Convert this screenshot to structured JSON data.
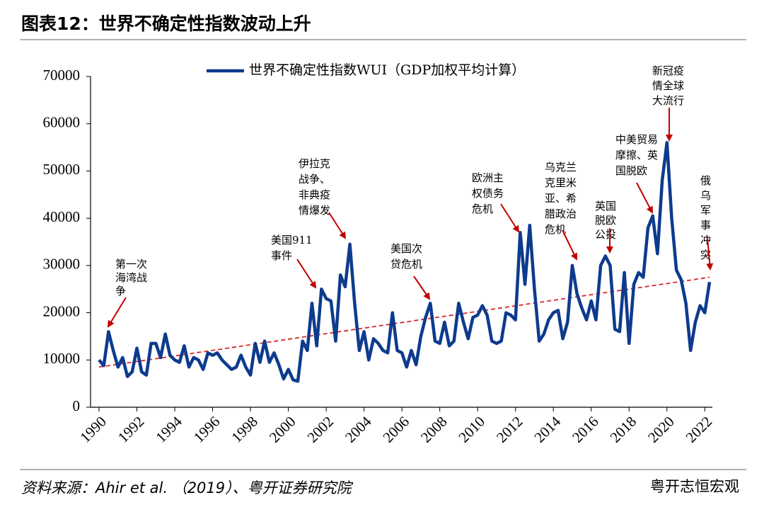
{
  "header": {
    "title": "图表12：世界不确定性指数波动上升"
  },
  "chart_data": {
    "type": "line",
    "series": [
      {
        "name": "世界不确定性指数WUI（GDP加权平均计算）",
        "color": "#0d3b8e",
        "x": [
          1990,
          1990.25,
          1990.5,
          1990.75,
          1991,
          1991.25,
          1991.5,
          1991.75,
          1992,
          1992.25,
          1992.5,
          1992.75,
          1993,
          1993.25,
          1993.5,
          1993.75,
          1994,
          1994.25,
          1994.5,
          1994.75,
          1995,
          1995.25,
          1995.5,
          1995.75,
          1996,
          1996.25,
          1996.5,
          1996.75,
          1997,
          1997.25,
          1997.5,
          1997.75,
          1998,
          1998.25,
          1998.5,
          1998.75,
          1999,
          1999.25,
          1999.5,
          1999.75,
          2000,
          2000.25,
          2000.5,
          2000.75,
          2001,
          2001.25,
          2001.5,
          2001.75,
          2002,
          2002.25,
          2002.5,
          2002.75,
          2003,
          2003.25,
          2003.5,
          2003.75,
          2004,
          2004.25,
          2004.5,
          2004.75,
          2005,
          2005.25,
          2005.5,
          2005.75,
          2006,
          2006.25,
          2006.5,
          2006.75,
          2007,
          2007.25,
          2007.5,
          2007.75,
          2008,
          2008.25,
          2008.5,
          2008.75,
          2009,
          2009.25,
          2009.5,
          2009.75,
          2010,
          2010.25,
          2010.5,
          2010.75,
          2011,
          2011.25,
          2011.5,
          2011.75,
          2012,
          2012.25,
          2012.5,
          2012.75,
          2013,
          2013.25,
          2013.5,
          2013.75,
          2014,
          2014.25,
          2014.5,
          2014.75,
          2015,
          2015.25,
          2015.5,
          2015.75,
          2016,
          2016.25,
          2016.5,
          2016.75,
          2017,
          2017.25,
          2017.5,
          2017.75,
          2018,
          2018.25,
          2018.5,
          2018.75,
          2019,
          2019.25,
          2019.5,
          2019.75,
          2020,
          2020.25,
          2020.5,
          2020.75,
          2021,
          2021.25,
          2021.5,
          2021.75,
          2022,
          2022.25
        ],
        "values": [
          10000,
          8800,
          16000,
          12000,
          8500,
          10500,
          6500,
          7500,
          12500,
          7500,
          6800,
          13500,
          13500,
          10500,
          15500,
          11000,
          10000,
          9500,
          13000,
          8500,
          10500,
          10000,
          8000,
          11500,
          11000,
          11500,
          10000,
          9000,
          8000,
          8500,
          11000,
          8500,
          6800,
          13500,
          9500,
          14000,
          9500,
          11500,
          9000,
          6000,
          8000,
          5800,
          5500,
          14000,
          12000,
          22000,
          13000,
          25000,
          23000,
          22500,
          14000,
          28000,
          25500,
          34500,
          22000,
          12000,
          16000,
          10000,
          14500,
          13500,
          12000,
          11500,
          20000,
          12000,
          11500,
          8500,
          12000,
          9000,
          15000,
          19000,
          22000,
          14000,
          13500,
          18000,
          13000,
          14000,
          22000,
          18000,
          14500,
          19000,
          19500,
          21500,
          19500,
          14000,
          13500,
          14000,
          20000,
          19500,
          18500,
          37000,
          26000,
          38500,
          25000,
          14000,
          15500,
          18500,
          20000,
          20500,
          14500,
          18000,
          30000,
          24000,
          21000,
          18500,
          22500,
          18500,
          30000,
          32000,
          30000,
          16500,
          16000,
          28500,
          13500,
          26000,
          28500,
          27500,
          38000,
          40500,
          32500,
          48000,
          56000,
          40000,
          29000,
          27000,
          22000,
          12000,
          18000,
          21500,
          20000,
          26500
        ]
      }
    ],
    "trendline": {
      "x": [
        1990,
        2022.25
      ],
      "values": [
        8500,
        27500
      ],
      "color": "#d62728"
    },
    "xlim": [
      1990,
      2022.25
    ],
    "xticks": [
      1990,
      1992,
      1994,
      1996,
      1998,
      2000,
      2002,
      2004,
      2006,
      2008,
      2010,
      2012,
      2014,
      2016,
      2018,
      2020,
      2022
    ],
    "ylim": [
      0,
      70000
    ],
    "yticks": [
      0,
      10000,
      20000,
      30000,
      40000,
      50000,
      60000,
      70000
    ],
    "annotations": [
      {
        "lines": [
          "第一次",
          "海湾战",
          "争"
        ]
      },
      {
        "lines": [
          "伊拉克",
          "战争、",
          "非典疫",
          "情爆发"
        ]
      },
      {
        "lines": [
          "美国911",
          "事件"
        ]
      },
      {
        "lines": [
          "美国次",
          "贷危机"
        ]
      },
      {
        "lines": [
          "欧洲主",
          "权债务",
          "危机"
        ]
      },
      {
        "lines": [
          "乌克兰",
          "克里米",
          "亚、希",
          "腊政治",
          "危机"
        ]
      },
      {
        "lines": [
          "英国",
          "脱欧",
          "公投"
        ]
      },
      {
        "lines": [
          "中美贸易",
          "摩擦、英",
          "国脱欧"
        ]
      },
      {
        "lines": [
          "新冠疫",
          "情全球",
          "大流行"
        ]
      },
      {
        "lines": [
          "俄",
          "乌",
          "军",
          "事",
          "冲",
          "突"
        ]
      }
    ]
  },
  "footer": {
    "source": "资料来源：Ahir et al. （2019）、粤开证券研究院",
    "watermark": "粤开志恒宏观"
  }
}
